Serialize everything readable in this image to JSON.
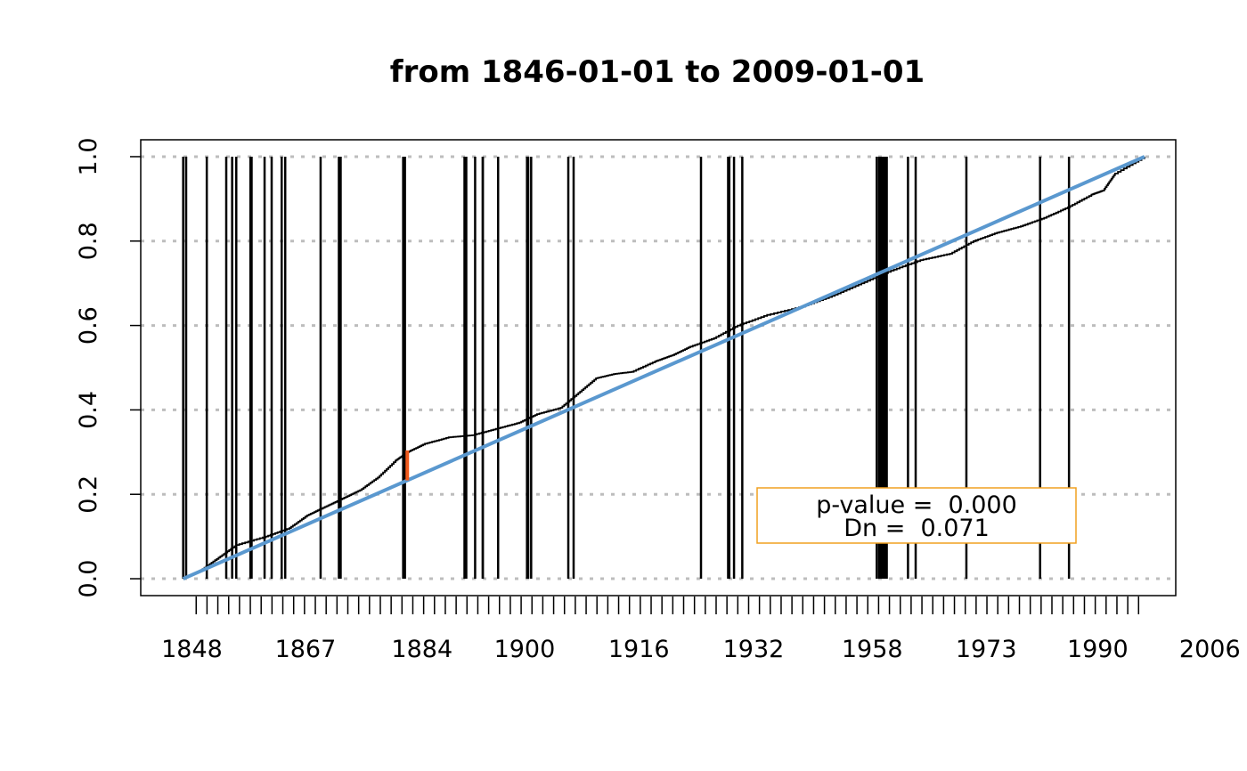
{
  "chart_data": {
    "type": "line",
    "title": "from 1846-01-01 to 2009-01-01",
    "xlabel": "",
    "ylabel": "",
    "xlim_years": [
      1838.8,
      2014.3
    ],
    "ylim": [
      -0.04,
      1.04
    ],
    "y_ticks": [
      "0.0",
      "0.2",
      "0.4",
      "0.6",
      "0.8",
      "1.0"
    ],
    "x_tick_labels": [
      "1848",
      "1867",
      "1884",
      "1900",
      "1916",
      "1932",
      "1958",
      "1973",
      "1990",
      "2006"
    ],
    "x_tick_label_positions": [
      0.0047,
      0.1144,
      0.227,
      0.3261,
      0.4365,
      0.5473,
      0.662,
      0.7721,
      0.8798,
      0.9882
    ],
    "grid": "horizontal dotted",
    "series": [
      {
        "kind": "empirical_cdf",
        "points": [
          [
            1846,
            0.0
          ],
          [
            1849,
            0.02
          ],
          [
            1852,
            0.05
          ],
          [
            1855,
            0.08
          ],
          [
            1860,
            0.1
          ],
          [
            1864,
            0.12
          ],
          [
            1867,
            0.15
          ],
          [
            1870,
            0.17
          ],
          [
            1873,
            0.19
          ],
          [
            1876,
            0.21
          ],
          [
            1879,
            0.24
          ],
          [
            1882,
            0.28
          ],
          [
            1884,
            0.3
          ],
          [
            1887,
            0.32
          ],
          [
            1891,
            0.335
          ],
          [
            1895,
            0.34
          ],
          [
            1899,
            0.355
          ],
          [
            1903,
            0.37
          ],
          [
            1906,
            0.39
          ],
          [
            1910,
            0.405
          ],
          [
            1913,
            0.44
          ],
          [
            1916,
            0.475
          ],
          [
            1919,
            0.485
          ],
          [
            1922,
            0.49
          ],
          [
            1926,
            0.515
          ],
          [
            1929,
            0.53
          ],
          [
            1932,
            0.55
          ],
          [
            1936,
            0.57
          ],
          [
            1940,
            0.6
          ],
          [
            1945,
            0.625
          ],
          [
            1951,
            0.645
          ],
          [
            1956,
            0.67
          ],
          [
            1961,
            0.7
          ],
          [
            1966,
            0.73
          ],
          [
            1971,
            0.755
          ],
          [
            1976,
            0.77
          ],
          [
            1980,
            0.8
          ],
          [
            1984,
            0.82
          ],
          [
            1988,
            0.835
          ],
          [
            1992,
            0.855
          ],
          [
            1996,
            0.88
          ],
          [
            2000,
            0.91
          ],
          [
            2002,
            0.92
          ],
          [
            2004,
            0.96
          ],
          [
            2009,
            1.0
          ]
        ]
      },
      {
        "kind": "uniform_reference",
        "points": [
          [
            1846,
            0.0
          ],
          [
            2009,
            1.0
          ]
        ]
      }
    ],
    "max_deviation": {
      "year": 1884,
      "y_from": 0.233,
      "y_to": 0.304
    },
    "event_lines_years": [
      1846,
      1846.5,
      1850,
      1853.3,
      1854.3,
      1855,
      1857.4,
      1857.6,
      1859.8,
      1861,
      1862.7,
      1863.3,
      1869.3,
      1872.4,
      1872.7,
      1883.3,
      1883.6,
      1893.7,
      1894,
      1895.5,
      1896.8,
      1896.8,
      1899.4,
      1904.3,
      1904.5,
      1905,
      1911.3,
      1912.2,
      1933.8,
      1938.4,
      1938.5,
      1938.6,
      1939.4,
      1940.8,
      1963.6,
      1964,
      1964.2,
      1964.5,
      1964.8,
      1965,
      1965.3,
      1968.9,
      1970.2,
      1978.8,
      1991.3,
      1996.2
    ],
    "rug_ticks": 88,
    "legend": {
      "position": "bottom-right",
      "lines": [
        "p-value =  0.000",
        "Dn =  0.071"
      ]
    },
    "colors": {
      "ecdf": "#000000",
      "reference": "#5a98cf",
      "max_deviation": "#f05a1c",
      "legend_border": "#f0a020",
      "grid": "#bdbdbd",
      "event_lines": "#000000"
    }
  }
}
